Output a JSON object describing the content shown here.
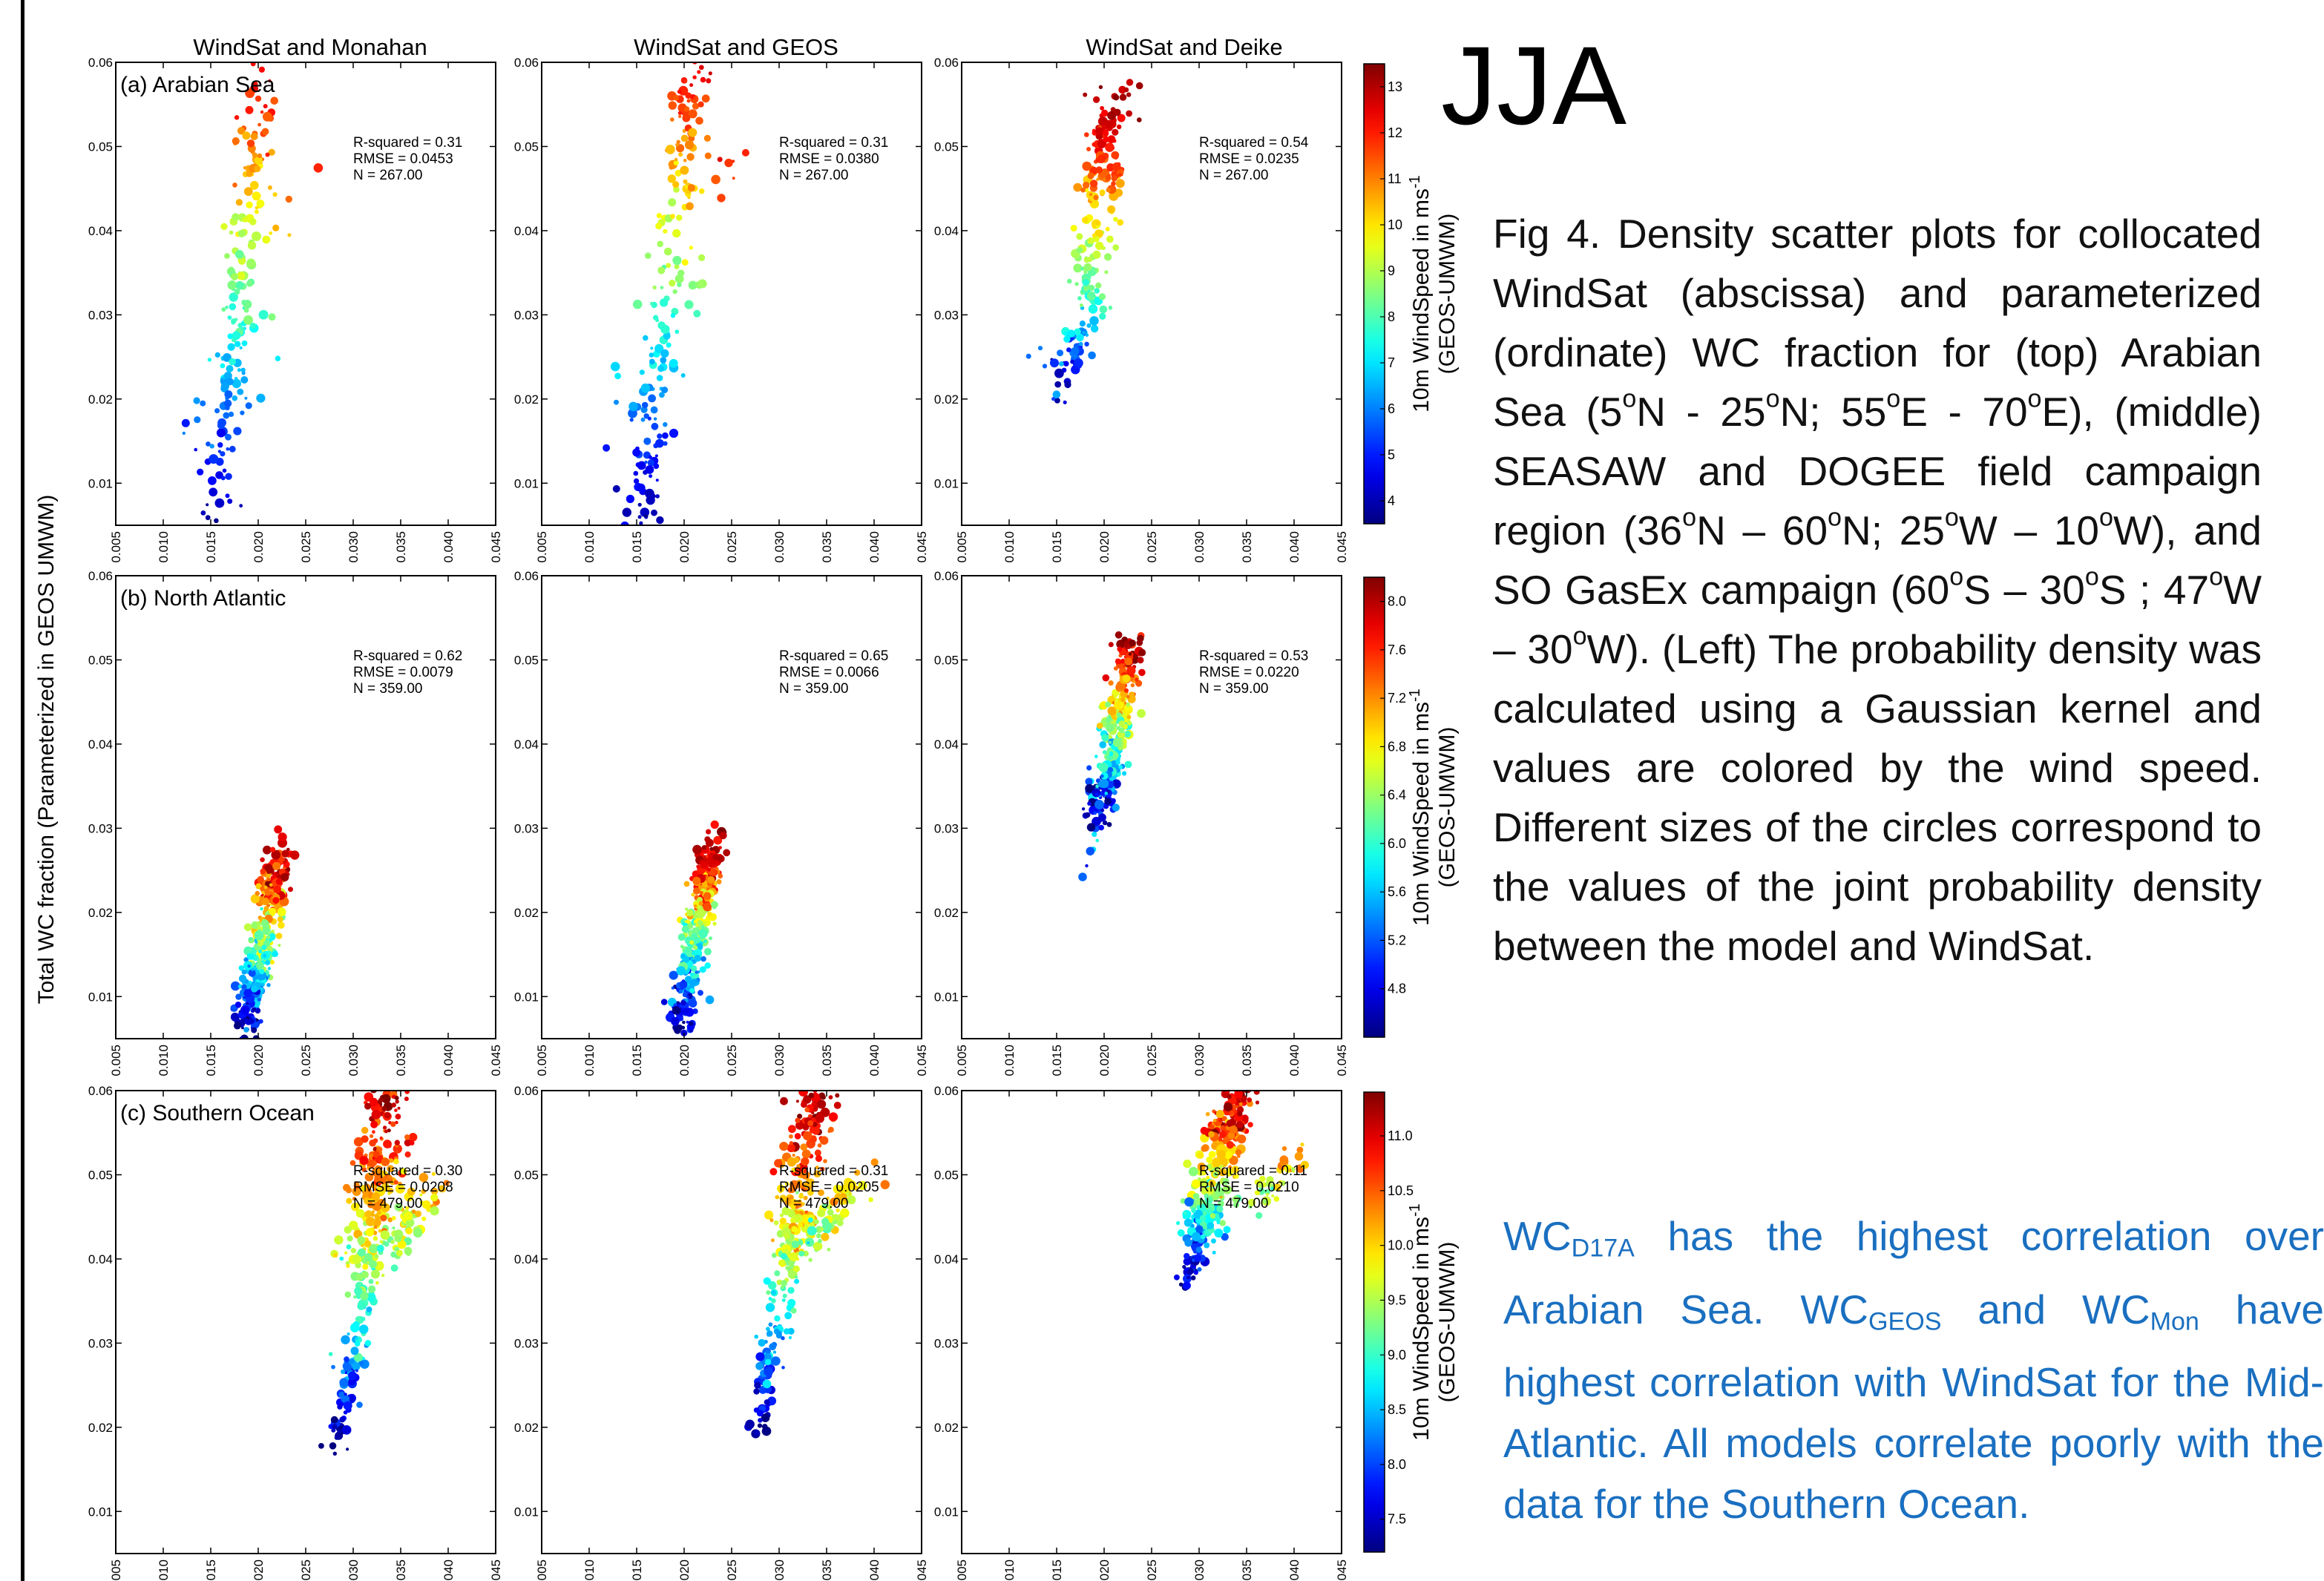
{
  "season_label": "JJA",
  "y_axis_label": "Total WC fraction (Parameterized in GEOS UMWM)",
  "caption": [
    {
      "t": "Fig 4.  Density scatter plots  for collocated WindSat (abscissa) and parameterized (ordinate) WC fraction for (top) Arabian Sea (5"
    },
    {
      "sup": "o"
    },
    {
      "t": "N - 25"
    },
    {
      "sup": "o"
    },
    {
      "t": "N; 55"
    },
    {
      "sup": "o"
    },
    {
      "t": "E - 70"
    },
    {
      "sup": "o"
    },
    {
      "t": "E), (middle) SEASAW and DOGEE field campaign region (36"
    },
    {
      "sup": "o"
    },
    {
      "t": "N – 60"
    },
    {
      "sup": "o"
    },
    {
      "t": "N; 25"
    },
    {
      "sup": "o"
    },
    {
      "t": "W – 10"
    },
    {
      "sup": "o"
    },
    {
      "t": "W), and SO GasEx campaign (60"
    },
    {
      "sup": "o"
    },
    {
      "t": "S – 30"
    },
    {
      "sup": "o"
    },
    {
      "t": "S ; 47"
    },
    {
      "sup": "o"
    },
    {
      "t": "W – 30"
    },
    {
      "sup": "o"
    },
    {
      "t": "W). (Left)  The probability density was calculated using a Gaussian kernel and values are colored by the wind speed. Different sizes of the circles correspond to the values of the joint probability density between the model and WindSat."
    }
  ],
  "note": [
    {
      "t": "WC"
    },
    {
      "sub": "D17A"
    },
    {
      "t": " has the highest correlation over Arabian Sea. WC"
    },
    {
      "sub": "GEOS"
    },
    {
      "t": " and WC"
    },
    {
      "sub": "Mon"
    },
    {
      "t": " have highest correlation with WindSat for the Mid-Atlantic. All models correlate poorly with the data for the Southern Ocean."
    }
  ],
  "colors": {
    "note_text": "#1a6fc0",
    "caption_text": "#111111",
    "axes": "#000000"
  },
  "chart_data": {
    "type": "scatter",
    "column_titles": [
      "WindSat and Monahan",
      "WindSat and GEOS",
      "WindSat and Deike"
    ],
    "row_labels": [
      "(a) Arabian Sea",
      "(b) North Atlantic",
      "(c) Southern Ocean"
    ],
    "xlim": [
      0.005,
      0.045
    ],
    "ylim": [
      0.005,
      0.06
    ],
    "x_ticks": [
      "0.005",
      "0.010",
      "0.015",
      "0.020",
      "0.025",
      "0.030",
      "0.035",
      "0.040",
      "0.045"
    ],
    "y_ticks": [
      "0.01",
      "0.02",
      "0.03",
      "0.04",
      "0.05",
      "0.06"
    ],
    "colormap": "jet",
    "colorbars": [
      {
        "label": "10m WindSpeed in ms",
        "label_sup": "-1",
        "sublabel": "(GEOS-UMWM)",
        "min": 3.5,
        "max": 13.5,
        "ticks": [
          "4",
          "5",
          "6",
          "7",
          "8",
          "9",
          "10",
          "11",
          "12",
          "13"
        ]
      },
      {
        "label": "10m WindSpeed in ms",
        "label_sup": "-1",
        "sublabel": "(GEOS-UMWM)",
        "min": 4.4,
        "max": 8.2,
        "ticks": [
          "4.8",
          "5.2",
          "5.6",
          "6.0",
          "6.4",
          "6.8",
          "7.2",
          "7.6",
          "8.0"
        ]
      },
      {
        "label": "10m WindSpeed in ms",
        "label_sup": "-1",
        "sublabel": "(GEOS-UMWM)",
        "min": 7.2,
        "max": 11.4,
        "ticks": [
          "7.5",
          "8.0",
          "8.5",
          "9.0",
          "9.5",
          "10.0",
          "10.5",
          "11.0"
        ]
      }
    ],
    "panels": [
      {
        "row": 0,
        "col": 0,
        "stats": [
          "R-squared = 0.31",
          "RMSE = 0.0453",
          "N = 267.00"
        ],
        "clusters": [
          {
            "x": [
              0.0155,
              0.0205
            ],
            "y": [
              0.005,
              0.06
            ],
            "n": 190,
            "xs": 0.0018,
            "ws": [
              3.8,
              12.5
            ]
          },
          {
            "x": [
              0.012,
              0.025
            ],
            "y": [
              0.01,
              0.05
            ],
            "n": 30,
            "xs": 0.003,
            "ws": [
              4,
              12
            ]
          }
        ]
      },
      {
        "row": 0,
        "col": 1,
        "stats": [
          "R-squared = 0.31",
          "RMSE = 0.0380",
          "N = 267.00"
        ],
        "clusters": [
          {
            "x": [
              0.0155,
              0.021
            ],
            "y": [
              0.005,
              0.06
            ],
            "n": 190,
            "xs": 0.0018,
            "ws": [
              3.8,
              12.5
            ]
          },
          {
            "x": [
              0.012,
              0.025
            ],
            "y": [
              0.01,
              0.05
            ],
            "n": 30,
            "xs": 0.003,
            "ws": [
              4,
              12
            ]
          }
        ]
      },
      {
        "row": 0,
        "col": 2,
        "stats": [
          "R-squared = 0.54",
          "RMSE = 0.0235",
          "N = 267.00"
        ],
        "clusters": [
          {
            "x": [
              0.0155,
              0.0195
            ],
            "y": [
              0.022,
              0.032
            ],
            "n": 60,
            "xs": 0.0015,
            "ws": [
              3.8,
              8
            ]
          },
          {
            "x": [
              0.0175,
              0.0205
            ],
            "y": [
              0.032,
              0.047
            ],
            "n": 80,
            "xs": 0.0018,
            "ws": [
              8,
              11
            ]
          },
          {
            "x": [
              0.0195,
              0.021
            ],
            "y": [
              0.045,
              0.056
            ],
            "n": 90,
            "xs": 0.002,
            "ws": [
              11,
              13.2
            ]
          },
          {
            "x": [
              0.013,
              0.017
            ],
            "y": [
              0.02,
              0.03
            ],
            "n": 12,
            "xs": 0.002,
            "ws": [
              5,
              8
            ]
          }
        ]
      },
      {
        "row": 1,
        "col": 0,
        "stats": [
          "R-squared = 0.62",
          "RMSE = 0.0079",
          "N = 359.00"
        ],
        "clusters": [
          {
            "x": [
              0.0185,
              0.0225
            ],
            "y": [
              0.006,
              0.027
            ],
            "n": 340,
            "xs": 0.0012,
            "ws": [
              4.5,
              8.1
            ]
          }
        ]
      },
      {
        "row": 1,
        "col": 1,
        "stats": [
          "R-squared = 0.65",
          "RMSE = 0.0066",
          "N = 359.00"
        ],
        "clusters": [
          {
            "x": [
              0.0195,
              0.023
            ],
            "y": [
              0.006,
              0.028
            ],
            "n": 340,
            "xs": 0.0012,
            "ws": [
              4.5,
              8.1
            ]
          }
        ]
      },
      {
        "row": 1,
        "col": 2,
        "stats": [
          "R-squared = 0.53",
          "RMSE = 0.0220",
          "N = 359.00"
        ],
        "clusters": [
          {
            "x": [
              0.0195,
              0.023
            ],
            "y": [
              0.031,
              0.052
            ],
            "n": 300,
            "xs": 0.0013,
            "ws": [
              4.6,
              8.1
            ]
          },
          {
            "x": [
              0.018,
              0.019
            ],
            "y": [
              0.024,
              0.03
            ],
            "n": 6,
            "xs": 0.001,
            "ws": [
              5,
              6
            ]
          }
        ]
      },
      {
        "row": 2,
        "col": 0,
        "stats": [
          "R-squared = 0.30",
          "RMSE = 0.0208",
          "N = 479.00"
        ],
        "clusters": [
          {
            "x": [
              0.028,
              0.032
            ],
            "y": [
              0.018,
              0.04
            ],
            "n": 120,
            "xs": 0.0012,
            "ws": [
              7.3,
              9.5
            ]
          },
          {
            "x": [
              0.031,
              0.034
            ],
            "y": [
              0.04,
              0.06
            ],
            "n": 230,
            "xs": 0.0022,
            "ws": [
              9.5,
              11.2
            ]
          },
          {
            "x": [
              0.033,
              0.039
            ],
            "y": [
              0.04,
              0.05
            ],
            "n": 60,
            "xs": 0.0015,
            "ws": [
              9.2,
              10.2
            ]
          }
        ]
      },
      {
        "row": 2,
        "col": 1,
        "stats": [
          "R-squared = 0.31",
          "RMSE = 0.0205",
          "N = 479.00"
        ],
        "clusters": [
          {
            "x": [
              0.028,
              0.031
            ],
            "y": [
              0.02,
              0.04
            ],
            "n": 110,
            "xs": 0.0012,
            "ws": [
              7.3,
              9.5
            ]
          },
          {
            "x": [
              0.031,
              0.034
            ],
            "y": [
              0.04,
              0.06
            ],
            "n": 230,
            "xs": 0.002,
            "ws": [
              9.5,
              11.2
            ]
          },
          {
            "x": [
              0.033,
              0.039
            ],
            "y": [
              0.042,
              0.05
            ],
            "n": 60,
            "xs": 0.0015,
            "ws": [
              9.2,
              10.2
            ]
          }
        ]
      },
      {
        "row": 2,
        "col": 2,
        "stats": [
          "R-squared = 0.11",
          "RMSE = 0.0210",
          "N = 479.00"
        ],
        "clusters": [
          {
            "x": [
              0.0285,
              0.03
            ],
            "y": [
              0.038,
              0.043
            ],
            "n": 50,
            "xs": 0.0008,
            "ws": [
              7.3,
              8.3
            ]
          },
          {
            "x": [
              0.03,
              0.034
            ],
            "y": [
              0.043,
              0.06
            ],
            "n": 300,
            "xs": 0.0018,
            "ws": [
              8.5,
              11.3
            ]
          },
          {
            "x": [
              0.035,
              0.041
            ],
            "y": [
              0.046,
              0.052
            ],
            "n": 40,
            "xs": 0.0015,
            "ws": [
              9.3,
              10.2
            ]
          }
        ]
      }
    ]
  }
}
